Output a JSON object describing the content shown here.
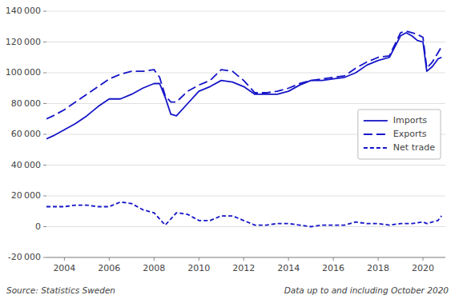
{
  "chart_data": {
    "type": "line",
    "xlim": [
      2003.2,
      2021.0
    ],
    "xticks": [
      2004,
      2006,
      2008,
      2010,
      2012,
      2014,
      2016,
      2018,
      2020
    ],
    "ylim": [
      -20000,
      140000
    ],
    "yticks": [
      {
        "value": -20000,
        "label": "-20 000"
      },
      0,
      {
        "value": 20000,
        "label": "20 000"
      },
      {
        "value": 40000,
        "label": "40 000"
      },
      {
        "value": 60000,
        "label": "60 000"
      },
      {
        "value": 80000,
        "label": "80 000"
      },
      {
        "value": 100000,
        "label": "100 000"
      },
      {
        "value": 120000,
        "label": "120 000"
      },
      {
        "value": 140000,
        "label": "140 000"
      }
    ],
    "grid": true,
    "legend": "center right",
    "annotations": [
      "Source: Statistics Sweden",
      "Data up to and including October 2020"
    ],
    "series": [
      {
        "name": "Imports",
        "color": "#1515c8",
        "line_style": "solid",
        "x": [
          2003.2,
          2003.5,
          2004.0,
          2004.5,
          2005.0,
          2005.5,
          2006.0,
          2006.5,
          2007.0,
          2007.5,
          2008.0,
          2008.25,
          2008.5,
          2008.75,
          2009.0,
          2009.5,
          2010.0,
          2010.5,
          2011.0,
          2011.5,
          2012.0,
          2012.5,
          2013.0,
          2013.5,
          2014.0,
          2014.5,
          2015.0,
          2015.5,
          2016.0,
          2016.5,
          2017.0,
          2017.5,
          2018.0,
          2018.5,
          2019.0,
          2019.25,
          2019.5,
          2019.75,
          2020.0,
          2020.17,
          2020.42,
          2020.67,
          2020.83
        ],
        "values": [
          57000,
          59000,
          63000,
          67000,
          72000,
          78000,
          83000,
          83000,
          86000,
          90000,
          93000,
          93000,
          84000,
          73000,
          72000,
          80000,
          88000,
          91000,
          95000,
          94000,
          91000,
          86000,
          86000,
          86000,
          88000,
          92000,
          95000,
          95000,
          96000,
          97000,
          100000,
          105000,
          108000,
          110000,
          124000,
          126000,
          124000,
          121000,
          120000,
          101000,
          104000,
          109000,
          110000
        ]
      },
      {
        "name": "Exports",
        "color": "#1515c8",
        "line_style": "dashed",
        "x": [
          2003.2,
          2003.5,
          2004.0,
          2004.5,
          2005.0,
          2005.5,
          2006.0,
          2006.5,
          2007.0,
          2007.5,
          2008.0,
          2008.25,
          2008.5,
          2008.75,
          2009.0,
          2009.5,
          2010.0,
          2010.5,
          2011.0,
          2011.5,
          2012.0,
          2012.5,
          2013.0,
          2013.5,
          2014.0,
          2014.5,
          2015.0,
          2015.5,
          2016.0,
          2016.5,
          2017.0,
          2017.5,
          2018.0,
          2018.5,
          2019.0,
          2019.25,
          2019.5,
          2019.75,
          2020.0,
          2020.17,
          2020.42,
          2020.67,
          2020.83
        ],
        "values": [
          70000,
          72000,
          76000,
          81000,
          86000,
          91000,
          96000,
          99000,
          101000,
          101000,
          102000,
          97000,
          85000,
          81000,
          81000,
          88000,
          92000,
          95000,
          102000,
          101000,
          95000,
          87000,
          87000,
          88000,
          90000,
          93000,
          95000,
          96000,
          97000,
          98000,
          103000,
          107000,
          110000,
          111000,
          126000,
          127000,
          126000,
          125000,
          123000,
          103000,
          107000,
          113000,
          117000
        ]
      },
      {
        "name": "Net trade",
        "color": "#1515c8",
        "line_style": "densely-dashed",
        "x": [
          2003.2,
          2003.5,
          2004.0,
          2004.5,
          2005.0,
          2005.5,
          2006.0,
          2006.5,
          2007.0,
          2007.5,
          2008.0,
          2008.5,
          2009.0,
          2009.5,
          2010.0,
          2010.5,
          2011.0,
          2011.5,
          2012.0,
          2012.5,
          2013.0,
          2013.5,
          2014.0,
          2014.5,
          2015.0,
          2015.5,
          2016.0,
          2016.5,
          2017.0,
          2017.5,
          2018.0,
          2018.5,
          2019.0,
          2019.5,
          2020.0,
          2020.17,
          2020.42,
          2020.67,
          2020.83
        ],
        "values": [
          13000,
          13000,
          13000,
          14000,
          14000,
          13000,
          13000,
          16000,
          15000,
          11000,
          9000,
          1000,
          9000,
          8000,
          4000,
          4000,
          7000,
          7000,
          4000,
          1000,
          1000,
          2000,
          2000,
          1000,
          0,
          1000,
          1000,
          1000,
          3000,
          2000,
          2000,
          1000,
          2000,
          2000,
          3000,
          2000,
          3000,
          4000,
          7000
        ]
      }
    ]
  }
}
